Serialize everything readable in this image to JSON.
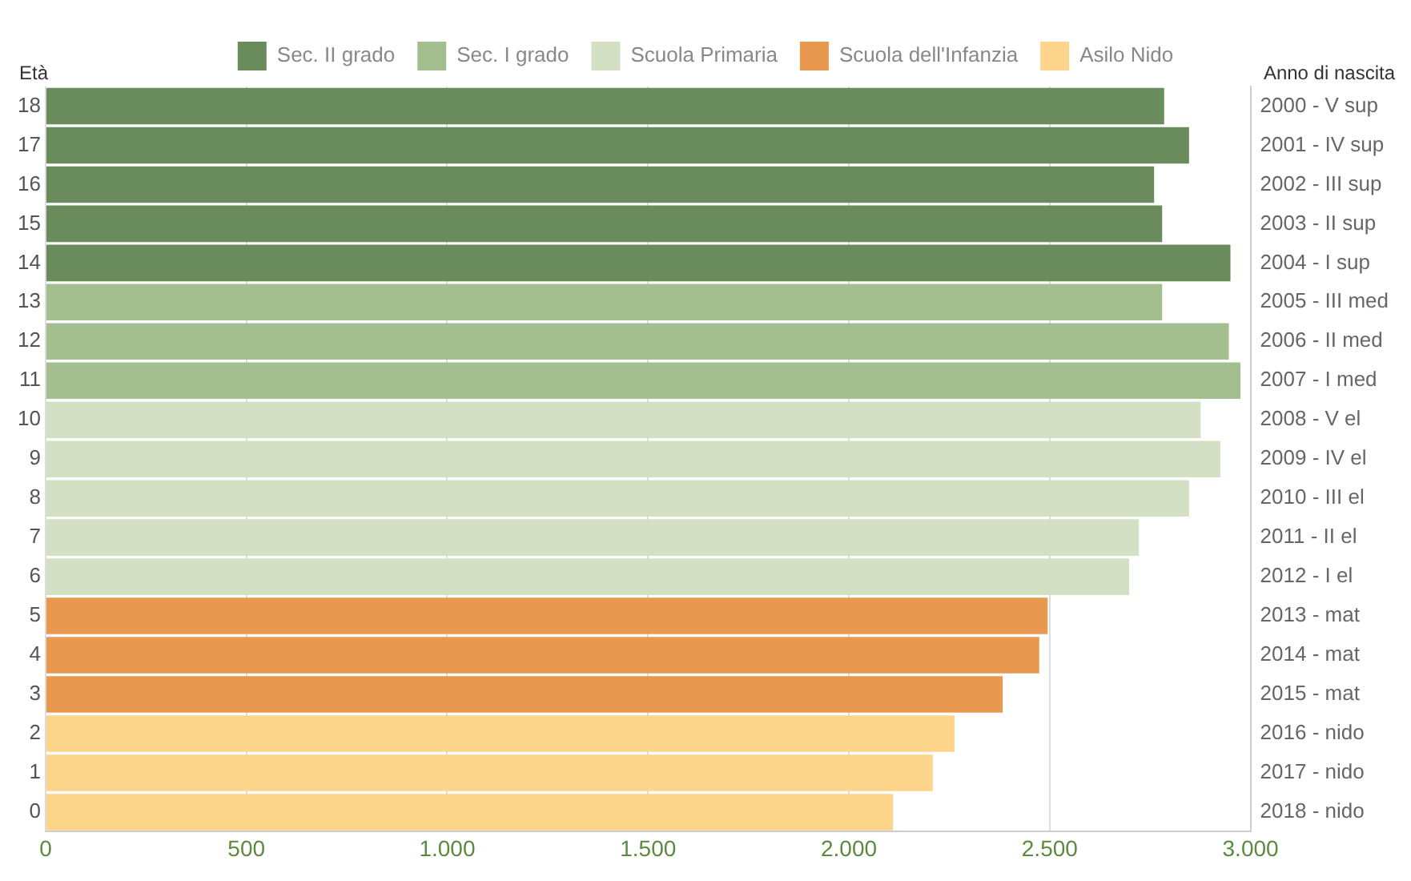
{
  "chart_data": {
    "type": "bar",
    "orientation": "horizontal",
    "stacked": true,
    "ylabel": "Età",
    "y2label": "Anno di nascita",
    "categories": [
      "18",
      "17",
      "16",
      "15",
      "14",
      "13",
      "12",
      "11",
      "10",
      "9",
      "8",
      "7",
      "6",
      "5",
      "4",
      "3",
      "2",
      "1",
      "0"
    ],
    "y2_categories": [
      "2000 - V sup",
      "2001 - IV sup",
      "2002 - III sup",
      "2003 - II sup",
      "2004 - I sup",
      "2005 - III med",
      "2006 - II med",
      "2007 - I med",
      "2008 - V el",
      "2009 - IV el",
      "2010 - III el",
      "2011 - II el",
      "2012 - I el",
      "2013 - mat",
      "2014 - mat",
      "2015 - mat",
      "2016 - nido",
      "2017 - nido",
      "2018 - nido"
    ],
    "series": [
      {
        "name": "Sec. II grado",
        "color": "#6a8c5c",
        "values": [
          2785,
          2847,
          2760,
          2780,
          2950,
          null,
          null,
          null,
          null,
          null,
          null,
          null,
          null,
          null,
          null,
          null,
          null,
          null,
          null
        ]
      },
      {
        "name": "Sec. I grado",
        "color": "#a3bf8f",
        "values": [
          null,
          null,
          null,
          null,
          null,
          2780,
          2946,
          2975,
          null,
          null,
          null,
          null,
          null,
          null,
          null,
          null,
          null,
          null,
          null
        ]
      },
      {
        "name": "Scuola Primaria",
        "color": "#d4e0c4",
        "values": [
          null,
          null,
          null,
          null,
          null,
          null,
          null,
          null,
          2876,
          2925,
          2847,
          2722,
          2698,
          null,
          null,
          null,
          null,
          null,
          null
        ]
      },
      {
        "name": "Scuola dell'Infanzia",
        "color": "#e8994f",
        "values": [
          null,
          null,
          null,
          null,
          null,
          null,
          null,
          null,
          null,
          null,
          null,
          null,
          null,
          2495,
          2474,
          2383,
          null,
          null,
          null
        ]
      },
      {
        "name": "Asilo Nido",
        "color": "#fdd58a",
        "values": [
          null,
          null,
          null,
          null,
          null,
          null,
          null,
          null,
          null,
          null,
          null,
          null,
          null,
          null,
          null,
          null,
          2263,
          2209,
          2110
        ]
      }
    ],
    "xlim": [
      0,
      3000
    ],
    "xticks": [
      0,
      500,
      {
        "value": 1000,
        "label": "1.000"
      },
      {
        "value": 1500,
        "label": "1.500"
      },
      {
        "value": 2000,
        "label": "2.000"
      },
      {
        "value": 2500,
        "label": "2.500"
      },
      {
        "value": 3000,
        "label": "3.000"
      }
    ],
    "grid": "x",
    "legend": "top"
  }
}
